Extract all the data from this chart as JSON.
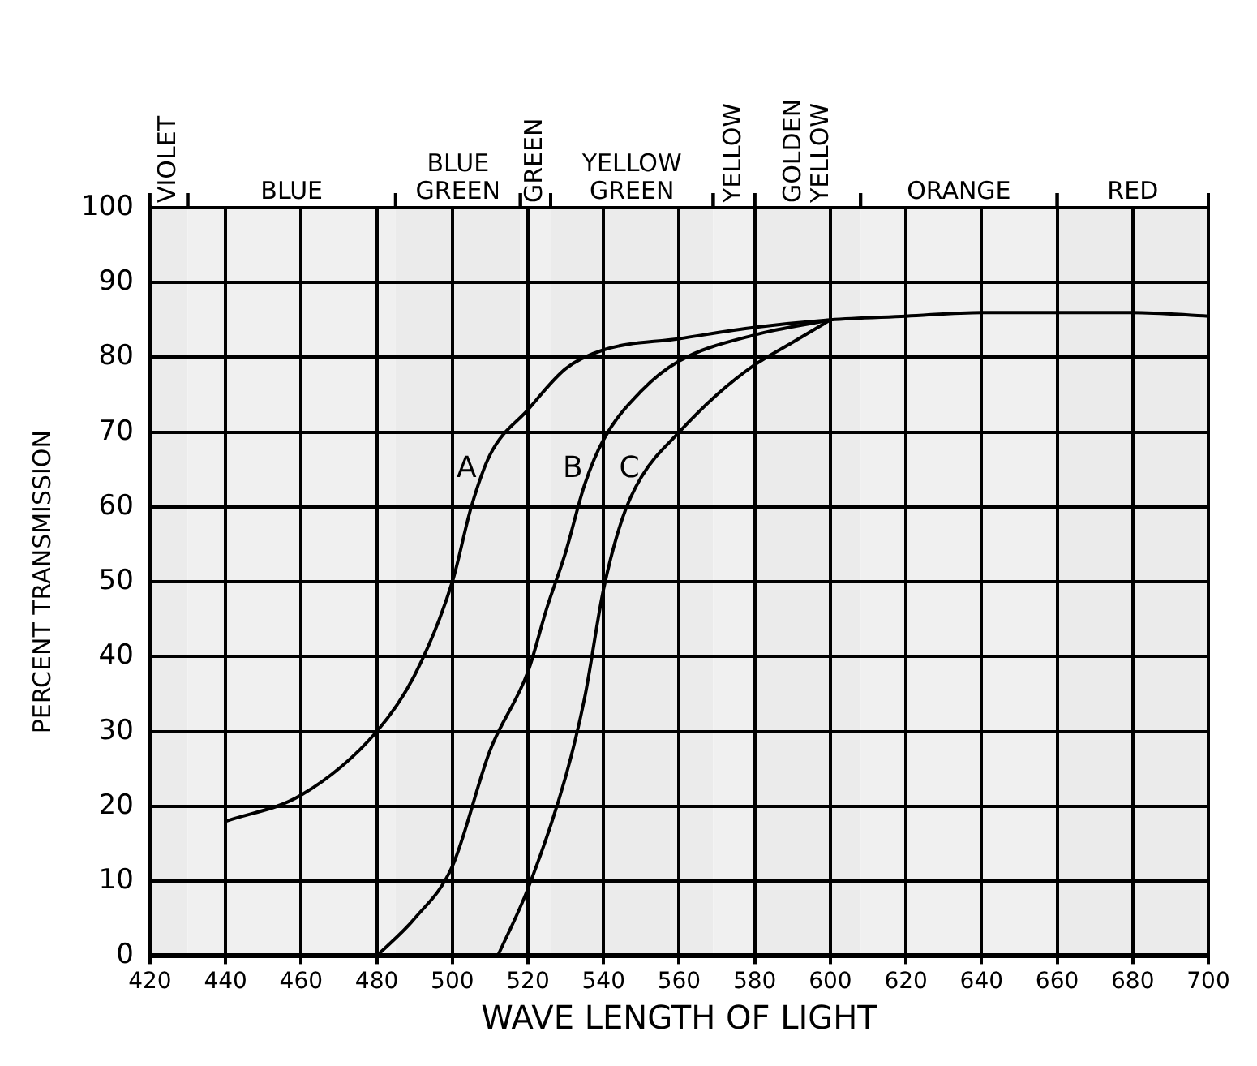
{
  "chart_data": {
    "type": "line",
    "xlabel": "WAVE LENGTH OF LIGHT",
    "ylabel": "PERCENT TRANSMISSION",
    "xlim": [
      420,
      700
    ],
    "xticks": [
      420,
      440,
      460,
      480,
      500,
      520,
      540,
      560,
      580,
      600,
      620,
      640,
      660,
      680,
      700
    ],
    "ylim": [
      0,
      100
    ],
    "yticks": [
      0,
      10,
      20,
      30,
      40,
      50,
      60,
      70,
      80,
      90,
      100
    ],
    "grid": true,
    "legend": false,
    "marker": "none",
    "line_style": "solid",
    "series": [
      {
        "name": "A",
        "color": "#000000",
        "x": [
          440,
          460,
          480,
          490,
          500,
          505,
          510,
          520,
          530,
          540,
          560,
          580,
          600,
          620,
          640,
          660,
          680,
          700
        ],
        "values": [
          18,
          21.5,
          30,
          37.5,
          50,
          60,
          67,
          73,
          78.5,
          81,
          82.5,
          84,
          85,
          85.5,
          86,
          86,
          86,
          85.5
        ]
      },
      {
        "name": "B",
        "color": "#000000",
        "x": [
          480,
          490,
          500,
          510,
          520,
          525,
          530,
          535,
          540,
          550,
          560,
          580,
          600
        ],
        "values": [
          0,
          5,
          12,
          27.5,
          38,
          46.5,
          54,
          63,
          69,
          75.5,
          79.5,
          83,
          85
        ]
      },
      {
        "name": "C",
        "color": "#000000",
        "x": [
          512,
          520,
          530,
          535,
          540,
          545,
          550,
          560,
          570,
          580,
          590,
          600
        ],
        "values": [
          0,
          9,
          24,
          34.5,
          49,
          58.5,
          64,
          70,
          75,
          79,
          82,
          85
        ]
      }
    ],
    "bands": [
      {
        "axis": "x",
        "from": 420,
        "to": 430,
        "label": "VIOLET",
        "color": "#ebebeb"
      },
      {
        "axis": "x",
        "from": 430,
        "to": 485,
        "label": "BLUE",
        "color": "#f0f0f0"
      },
      {
        "axis": "x",
        "from": 485,
        "to": 518,
        "label": "BLUE GREEN",
        "color": "#ebebeb"
      },
      {
        "axis": "x",
        "from": 518,
        "to": 526,
        "label": "GREEN",
        "color": "#f0f0f0"
      },
      {
        "axis": "x",
        "from": 526,
        "to": 569,
        "label": "YELLOW GREEN",
        "color": "#ebebeb"
      },
      {
        "axis": "x",
        "from": 569,
        "to": 580,
        "label": "YELLOW",
        "color": "#f0f0f0"
      },
      {
        "axis": "x",
        "from": 580,
        "to": 608,
        "label": "GOLDEN YELLOW",
        "color": "#ebebeb"
      },
      {
        "axis": "x",
        "from": 608,
        "to": 660,
        "label": "ORANGE",
        "color": "#f0f0f0"
      },
      {
        "axis": "x",
        "from": 660,
        "to": 700,
        "label": "RED",
        "color": "#ebebeb"
      }
    ]
  }
}
